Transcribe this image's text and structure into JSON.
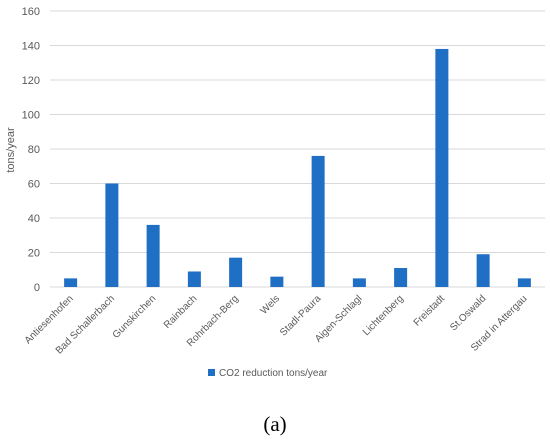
{
  "chart_data": {
    "type": "bar",
    "categories": [
      "Antiesenhofen",
      "Bad Schallerbach",
      "Gunskirchen",
      "Rainbach",
      "Rohrbach-Berg",
      "Wels",
      "Stadl-Paura",
      "Aigen-Schlagl",
      "Lichtenberg",
      "Freistadt",
      "St.Oswald",
      "Strad in Attergau"
    ],
    "series": [
      {
        "name": "CO2 reduction tons/year",
        "values": [
          5,
          60,
          36,
          9,
          17,
          6,
          76,
          5,
          11,
          138,
          19,
          5
        ]
      }
    ],
    "ylabel": "tons/year",
    "xlabel": "",
    "ylim": [
      0,
      160
    ],
    "yticks": [
      0,
      20,
      40,
      60,
      80,
      100,
      120,
      140,
      160
    ],
    "grid": true,
    "legend": "bottom",
    "bar_color": "#1f6fc5",
    "grid_color": "#d9d9d9"
  },
  "caption": "(a)"
}
